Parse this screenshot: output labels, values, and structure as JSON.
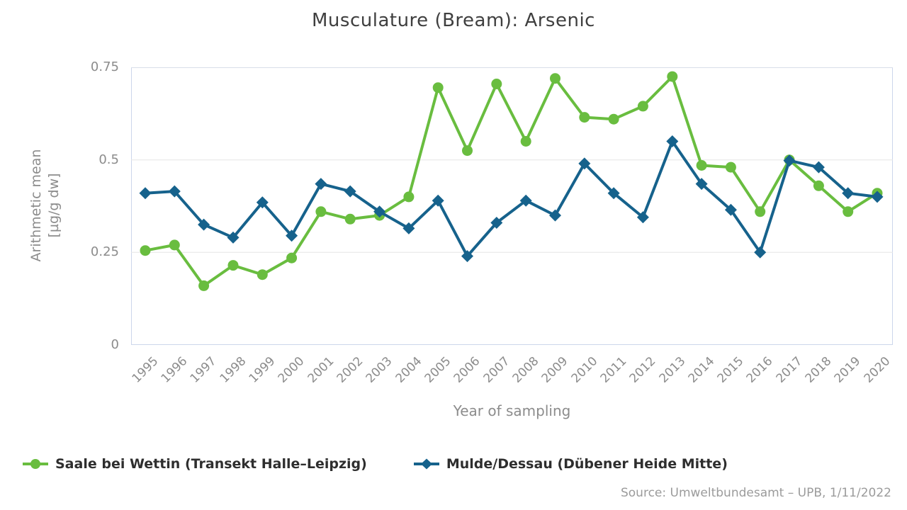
{
  "page": {
    "source": "Source: Umweltbundesamt – UPB, 1/11/2022"
  },
  "colors": {
    "plot_border": "#ccd6eb",
    "grid_line": "#e6e6e6",
    "title_text": "#3f3f3f",
    "axis_text": "#8c8c8c",
    "legend_text": "#2e2e2e",
    "source_text": "#9b9b9b"
  },
  "chart_data": {
    "type": "line",
    "title": "Musculature (Bream): Arsenic",
    "xlabel": "Year of sampling",
    "ylabel": "Arithmetic mean [µg/g dw]",
    "ylabel_lines": [
      "Arithmetic mean",
      "[µg/g dw]"
    ],
    "x": [
      1995,
      1996,
      1997,
      1998,
      1999,
      2000,
      2001,
      2002,
      2003,
      2004,
      2005,
      2006,
      2007,
      2008,
      2009,
      2010,
      2011,
      2012,
      2013,
      2014,
      2015,
      2016,
      2017,
      2018,
      2019,
      2020
    ],
    "ylim": [
      0,
      0.75
    ],
    "yticks": [
      0,
      0.25,
      0.5,
      0.75
    ],
    "ytick_labels": [
      "0",
      "0.25",
      "0.5",
      "0.75"
    ],
    "grid": true,
    "legend_position": "bottom-left",
    "series": [
      {
        "id": "saale",
        "name": "Saale bei Wettin (Transekt Halle–Leipzig)",
        "marker": "circle",
        "color": "#69bd3f",
        "values": [
          0.255,
          0.27,
          0.16,
          0.215,
          0.19,
          0.235,
          0.36,
          0.34,
          0.35,
          0.4,
          0.695,
          0.525,
          0.705,
          0.55,
          0.72,
          0.615,
          0.61,
          0.645,
          0.725,
          0.485,
          0.48,
          0.36,
          0.5,
          0.43,
          0.36,
          0.41
        ]
      },
      {
        "id": "mulde",
        "name": "Mulde/Dessau (Dübener Heide Mitte)",
        "marker": "diamond",
        "color": "#16628c",
        "values": [
          0.41,
          0.415,
          0.325,
          0.29,
          0.385,
          0.295,
          0.435,
          0.415,
          0.36,
          0.315,
          0.39,
          0.24,
          0.33,
          0.39,
          0.35,
          0.49,
          0.41,
          0.345,
          0.55,
          0.435,
          0.365,
          0.25,
          0.498,
          0.48,
          0.41,
          0.4
        ]
      }
    ]
  }
}
